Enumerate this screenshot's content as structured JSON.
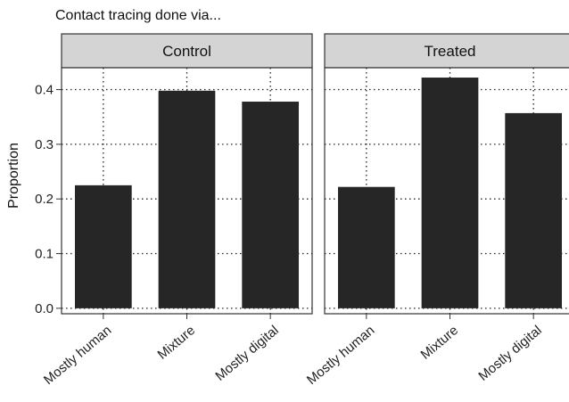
{
  "chart_data": {
    "type": "bar",
    "title": "Contact tracing done via...",
    "ylabel": "Proportion",
    "xlabel": "",
    "ylim": [
      -0.01,
      0.44
    ],
    "yticks": [
      0.0,
      0.1,
      0.2,
      0.3,
      0.4
    ],
    "ytick_labels": [
      "0.0",
      "0.1",
      "0.2",
      "0.3",
      "0.4"
    ],
    "grid": true,
    "categories": [
      "Mostly human",
      "Mixture",
      "Mostly digital"
    ],
    "panels": [
      {
        "name": "Control",
        "values": [
          0.225,
          0.398,
          0.378
        ]
      },
      {
        "name": "Treated",
        "values": [
          0.222,
          0.422,
          0.357
        ]
      }
    ],
    "bar_color": "#262626",
    "strip_color": "#d4d4d4"
  }
}
